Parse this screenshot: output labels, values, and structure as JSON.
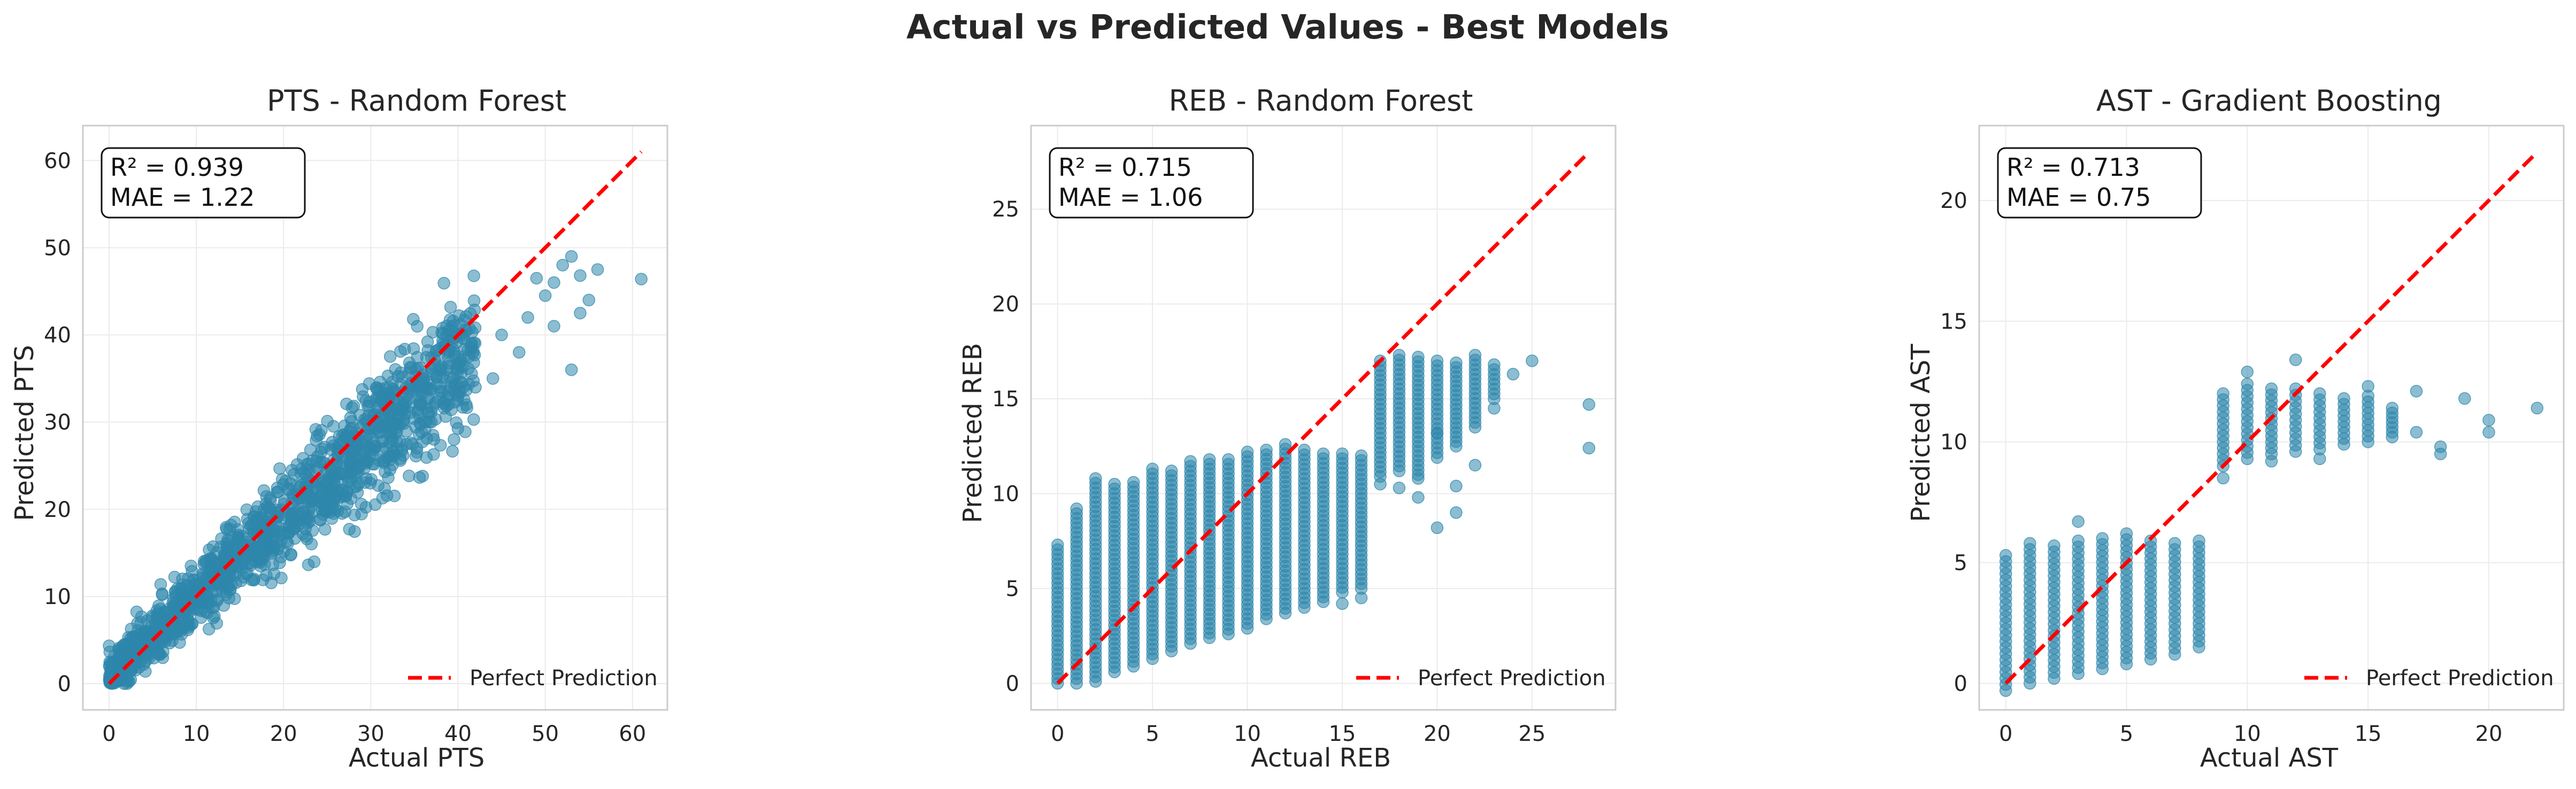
{
  "figure": {
    "title": "Actual vs Predicted Values - Best Models"
  },
  "colors": {
    "points": "#2e86ab",
    "perfect_line": "#ff0000",
    "grid": "#ebebeb",
    "frame": "#cccccc"
  },
  "chart_data": [
    {
      "type": "scatter",
      "title": "PTS - Random Forest",
      "xlabel": "Actual PTS",
      "ylabel": "Predicted PTS",
      "xlim": [
        -3,
        64
      ],
      "ylim": [
        -3,
        64
      ],
      "xticks": [
        0,
        10,
        20,
        30,
        40,
        50,
        60
      ],
      "yticks": [
        0,
        10,
        20,
        30,
        40,
        50,
        60
      ],
      "annotation": [
        "R² = 0.939",
        "MAE = 1.22"
      ],
      "legend_label": "Perfect Prediction",
      "legend_position": "lower-right",
      "reference_line": [
        0,
        61
      ],
      "distribution": "continuous",
      "trend": {
        "slope": 0.9,
        "intercept": 0.8,
        "spread": 2.6
      },
      "outliers": [
        [
          61,
          46.4
        ],
        [
          56,
          47.5
        ],
        [
          54,
          46.8
        ],
        [
          55,
          44
        ],
        [
          54,
          42.5
        ],
        [
          53,
          49
        ],
        [
          52,
          48
        ],
        [
          51,
          46
        ],
        [
          50,
          44.5
        ],
        [
          51,
          41
        ],
        [
          48,
          42
        ],
        [
          49,
          46.5
        ],
        [
          45,
          40
        ],
        [
          47,
          38
        ],
        [
          53,
          36
        ],
        [
          44,
          35
        ],
        [
          42,
          34
        ],
        [
          38,
          34
        ],
        [
          40,
          33
        ]
      ],
      "x_max_dense": 42
    },
    {
      "type": "scatter",
      "title": "REB - Random Forest",
      "xlabel": "Actual REB",
      "ylabel": "Predicted REB",
      "xlim": [
        -1.4,
        29.4
      ],
      "ylim": [
        -1.4,
        29.4
      ],
      "xticks": [
        0,
        5,
        10,
        15,
        20,
        25
      ],
      "yticks": [
        0,
        5,
        10,
        15,
        20,
        25
      ],
      "annotation": [
        "R² = 0.715",
        "MAE = 1.06"
      ],
      "legend_label": "Perfect Prediction",
      "legend_position": "lower-right",
      "reference_line": [
        0,
        28
      ],
      "distribution": "integer",
      "columns": [
        [
          0,
          0,
          7.3
        ],
        [
          1,
          0,
          9.2
        ],
        [
          2,
          0.1,
          10.8
        ],
        [
          3,
          0.6,
          10.5
        ],
        [
          4,
          0.9,
          10.6
        ],
        [
          5,
          1.3,
          11.3
        ],
        [
          6,
          1.7,
          11.2
        ],
        [
          7,
          2.1,
          11.7
        ],
        [
          8,
          2.4,
          11.8
        ],
        [
          9,
          2.6,
          11.8
        ],
        [
          10,
          2.9,
          12.2
        ],
        [
          11,
          3.4,
          12.3
        ],
        [
          12,
          3.7,
          12.6
        ],
        [
          13,
          4.0,
          12.3
        ],
        [
          14,
          4.3,
          12.1
        ],
        [
          15,
          4.8,
          12.1
        ],
        [
          16,
          5.0,
          12.0
        ],
        [
          17,
          10.9,
          17.0
        ],
        [
          18,
          11.2,
          17.3
        ],
        [
          19,
          11.0,
          17.2
        ],
        [
          20,
          11.9,
          17.0
        ],
        [
          21,
          12.5,
          16.9
        ],
        [
          22,
          13.5,
          17.3
        ],
        [
          23,
          15.0,
          16.8
        ]
      ],
      "outliers": [
        [
          17,
          10.5
        ],
        [
          18,
          10.3
        ],
        [
          19,
          9.8
        ],
        [
          20,
          8.2
        ],
        [
          20,
          13.2
        ],
        [
          21,
          9.0
        ],
        [
          21,
          10.4
        ],
        [
          22,
          11.5
        ],
        [
          23,
          14.5
        ],
        [
          24,
          16.3
        ],
        [
          25,
          17.0
        ],
        [
          28,
          14.7
        ],
        [
          28,
          12.4
        ],
        [
          19,
          10.8
        ],
        [
          16,
          4.5
        ],
        [
          15,
          4.2
        ]
      ]
    },
    {
      "type": "scatter",
      "title": "AST - Gradient Boosting",
      "xlabel": "Actual AST",
      "ylabel": "Predicted AST",
      "xlim": [
        -1.1,
        23.1
      ],
      "ylim": [
        -1.1,
        23.1
      ],
      "xticks": [
        0,
        5,
        10,
        15,
        20
      ],
      "yticks": [
        0,
        5,
        10,
        15,
        20
      ],
      "annotation": [
        "R² = 0.713",
        "MAE = 0.75"
      ],
      "legend_label": "Perfect Prediction",
      "legend_position": "lower-right",
      "reference_line": [
        0,
        22
      ],
      "distribution": "integer",
      "columns": [
        [
          0,
          -0.3,
          5.3
        ],
        [
          1,
          0.0,
          5.8
        ],
        [
          2,
          0.2,
          5.7
        ],
        [
          3,
          0.4,
          5.9
        ],
        [
          4,
          0.6,
          6.0
        ],
        [
          5,
          0.8,
          6.2
        ],
        [
          6,
          1.0,
          5.9
        ],
        [
          7,
          1.2,
          5.8
        ],
        [
          8,
          1.5,
          5.9
        ],
        [
          9,
          9.0,
          12.0
        ],
        [
          10,
          9.3,
          12.4
        ],
        [
          11,
          9.5,
          12.2
        ],
        [
          12,
          9.6,
          12.2
        ],
        [
          13,
          9.7,
          12.0
        ],
        [
          14,
          9.9,
          11.8
        ],
        [
          15,
          10.0,
          11.9
        ],
        [
          16,
          10.2,
          11.4
        ]
      ],
      "outliers": [
        [
          3,
          6.7
        ],
        [
          10,
          12.9
        ],
        [
          12,
          13.4
        ],
        [
          9,
          8.5
        ],
        [
          11,
          9.2
        ],
        [
          13,
          9.3
        ],
        [
          17,
          10.4
        ],
        [
          17,
          12.1
        ],
        [
          18,
          9.5
        ],
        [
          18,
          9.8
        ],
        [
          19,
          11.8
        ],
        [
          20,
          10.9
        ],
        [
          20,
          10.4
        ],
        [
          22,
          11.4
        ],
        [
          15,
          12.3
        ]
      ]
    }
  ]
}
